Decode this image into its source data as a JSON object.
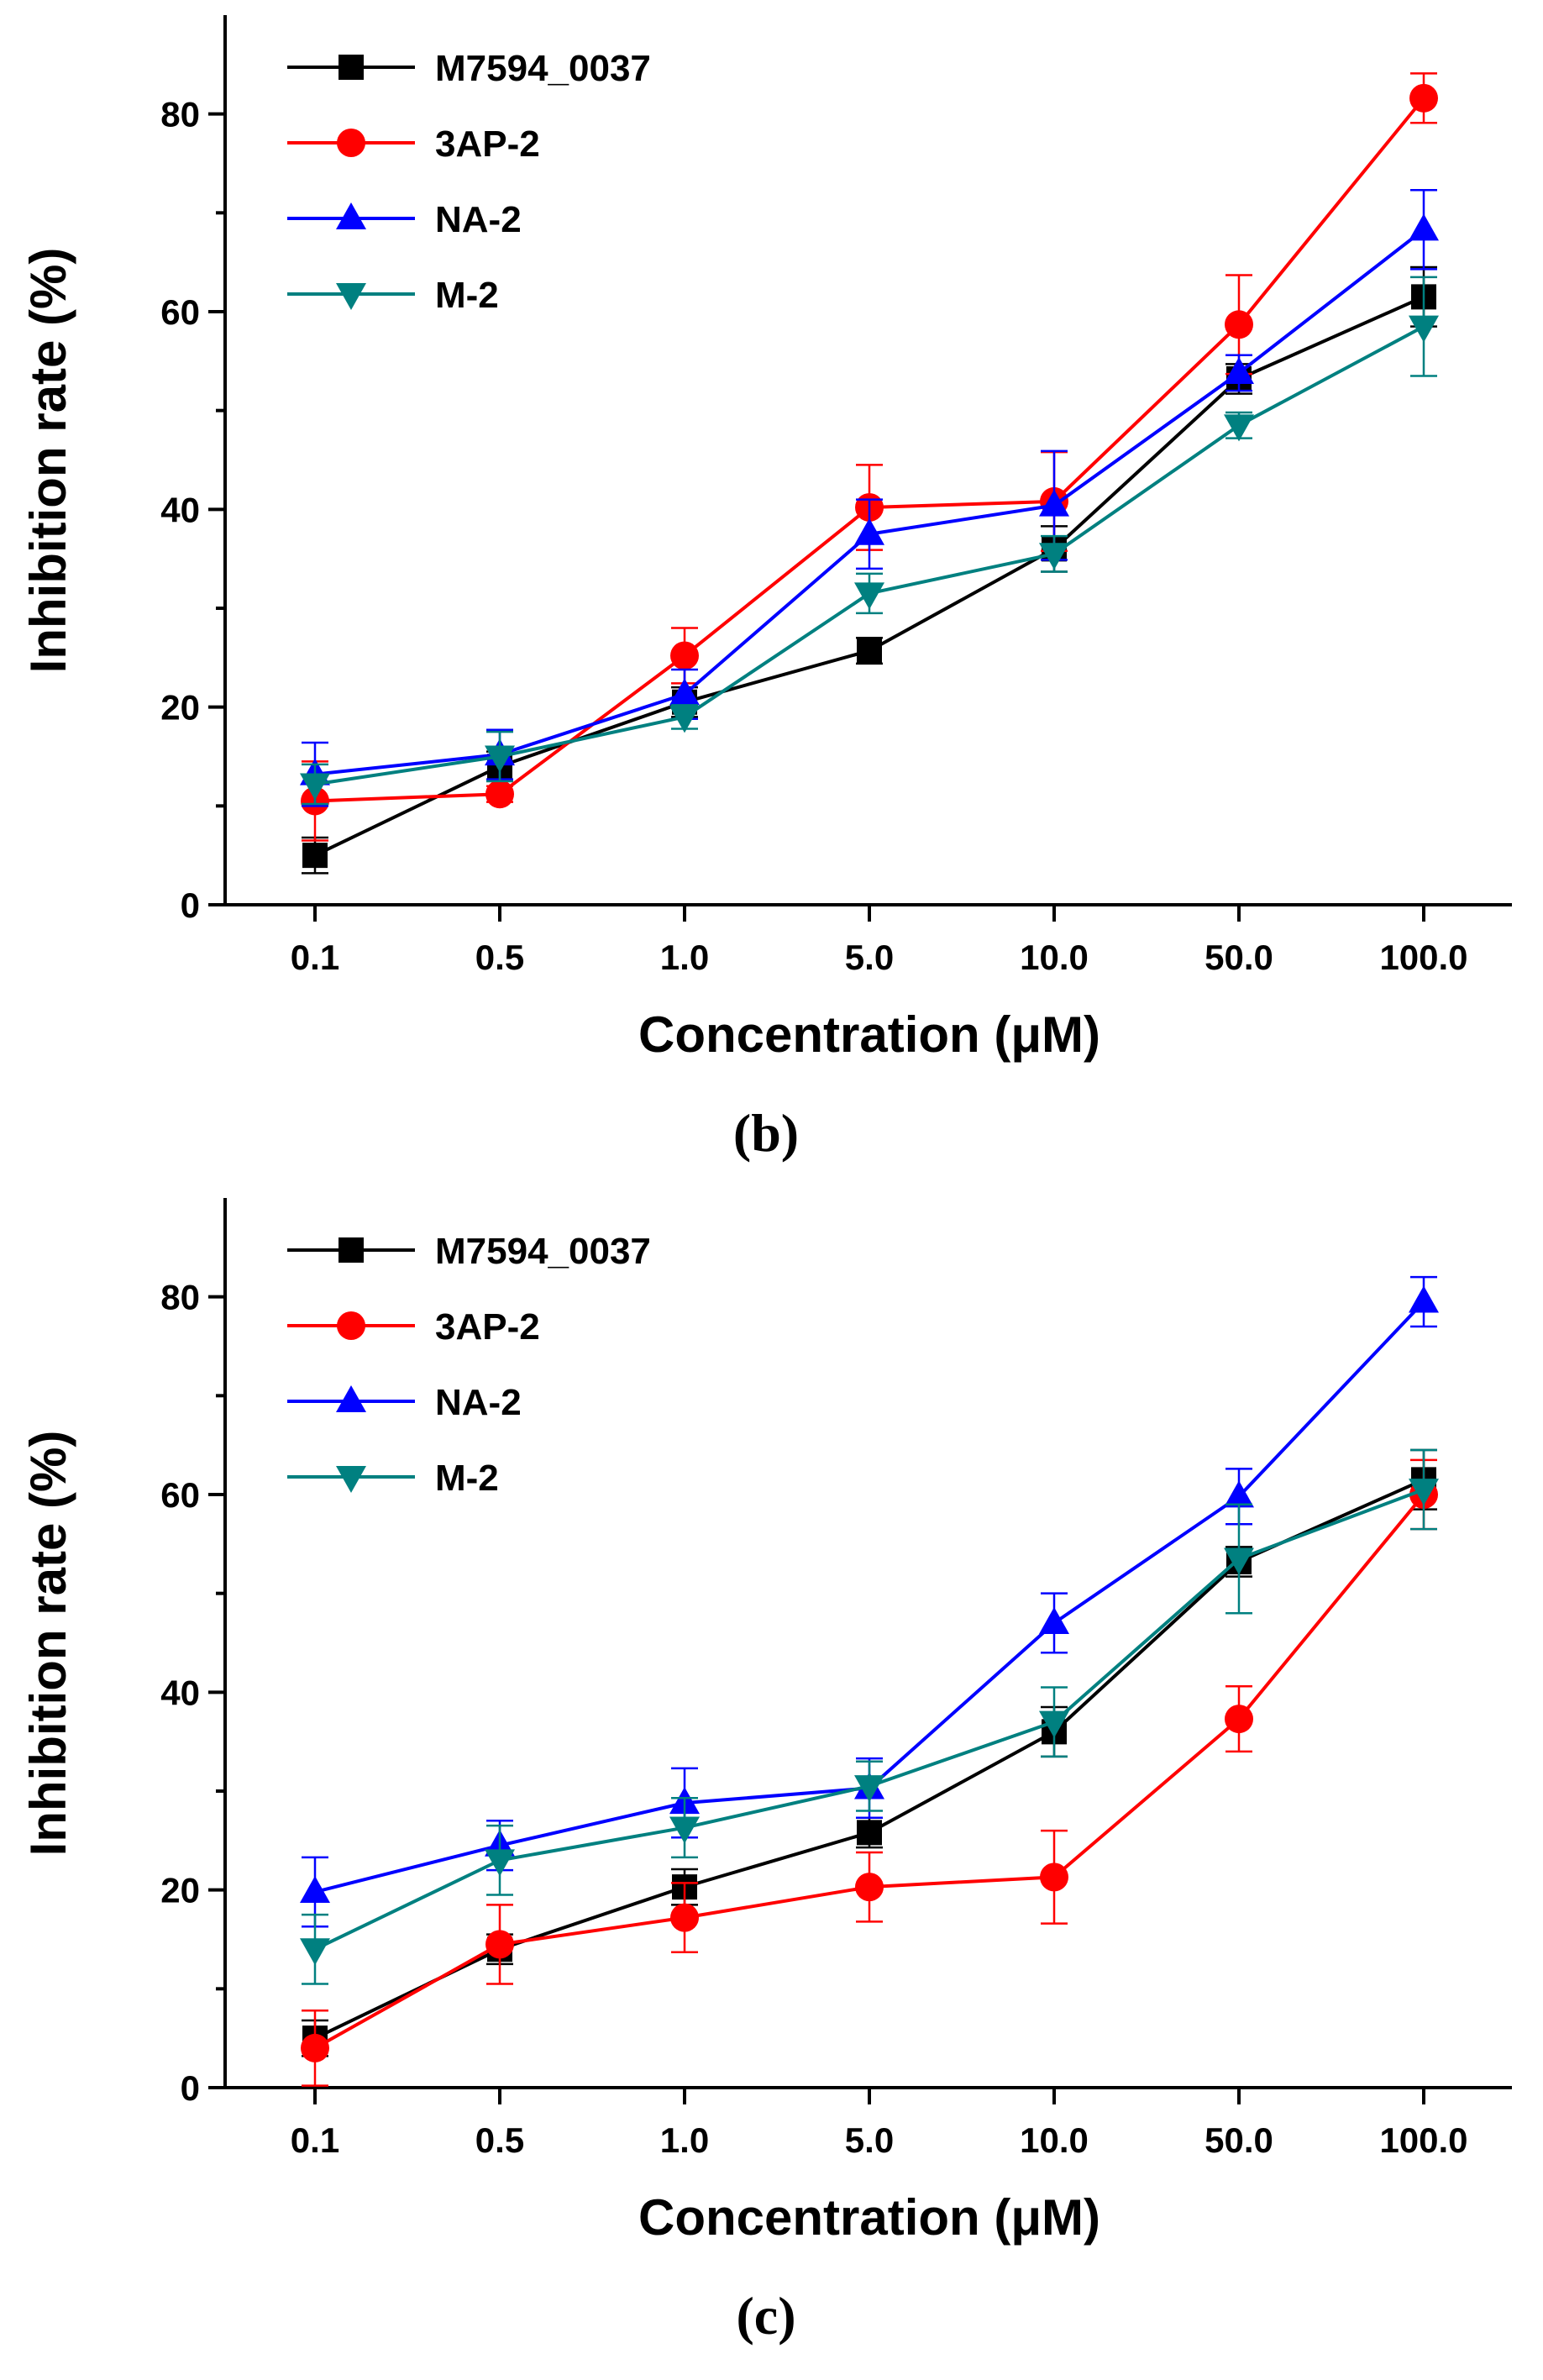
{
  "chart_data": [
    {
      "type": "line",
      "panel_label": "(b)",
      "xlabel": "Concentration (μM)",
      "ylabel": "Inhibition rate (%)",
      "categories": [
        "0.1",
        "0.5",
        "1.0",
        "5.0",
        "10.0",
        "50.0",
        "100.0"
      ],
      "ylim": [
        0,
        90
      ],
      "yticks": [
        0,
        20,
        40,
        60,
        80
      ],
      "y_tick_labels": [
        "0",
        "20",
        "40",
        "60",
        "80"
      ],
      "grid": false,
      "legend_position": "top-left",
      "series": [
        {
          "name": "M7594_0037",
          "color": "#000000",
          "marker": "square",
          "values": [
            5.0,
            14.0,
            20.5,
            25.7,
            36.0,
            53.2,
            61.5
          ],
          "errors": [
            1.8,
            1.5,
            1.5,
            1.3,
            2.3,
            1.5,
            3.0
          ]
        },
        {
          "name": "3AP-2",
          "color": "#ff0000",
          "marker": "circle",
          "values": [
            10.5,
            11.2,
            25.2,
            40.2,
            40.8,
            58.7,
            81.6
          ],
          "errors": [
            4.0,
            0.8,
            2.8,
            4.3,
            5.0,
            5.0,
            2.5
          ]
        },
        {
          "name": "NA-2",
          "color": "#0000ff",
          "marker": "triangle-up",
          "values": [
            13.2,
            15.2,
            21.3,
            37.5,
            40.4,
            53.8,
            68.3
          ],
          "errors": [
            3.2,
            2.5,
            2.5,
            3.5,
            5.5,
            1.8,
            4.0
          ]
        },
        {
          "name": "M-2",
          "color": "#008080",
          "marker": "triangle-down",
          "values": [
            12.2,
            15.0,
            19.0,
            31.5,
            35.5,
            48.5,
            58.5
          ],
          "errors": [
            2.0,
            2.5,
            1.2,
            2.0,
            1.8,
            1.3,
            5.0
          ]
        }
      ]
    },
    {
      "type": "line",
      "panel_label": "(c)",
      "xlabel": "Concentration (μM)",
      "ylabel": "Inhibition rate (%)",
      "categories": [
        "0.1",
        "0.5",
        "1.0",
        "5.0",
        "10.0",
        "50.0",
        "100.0"
      ],
      "ylim": [
        0,
        90
      ],
      "yticks": [
        0,
        20,
        40,
        60,
        80
      ],
      "y_tick_labels": [
        "0",
        "20",
        "40",
        "60",
        "80"
      ],
      "grid": false,
      "legend_position": "top-left",
      "series": [
        {
          "name": "M7594_0037",
          "color": "#000000",
          "marker": "square",
          "values": [
            5.0,
            14.0,
            20.3,
            25.8,
            36.0,
            53.2,
            61.5
          ],
          "errors": [
            1.8,
            1.5,
            1.8,
            1.5,
            2.5,
            1.5,
            3.0
          ]
        },
        {
          "name": "3AP-2",
          "color": "#ff0000",
          "marker": "circle",
          "values": [
            4.0,
            14.5,
            17.2,
            20.3,
            21.3,
            37.3,
            60.0
          ],
          "errors": [
            3.8,
            4.0,
            3.5,
            3.5,
            4.7,
            3.3,
            3.5
          ]
        },
        {
          "name": "NA-2",
          "color": "#0000ff",
          "marker": "triangle-up",
          "values": [
            19.8,
            24.5,
            28.8,
            30.3,
            47.0,
            59.8,
            79.5
          ],
          "errors": [
            3.5,
            2.5,
            3.5,
            3.0,
            3.0,
            2.8,
            2.5
          ]
        },
        {
          "name": "M-2",
          "color": "#008080",
          "marker": "triangle-down",
          "values": [
            14.0,
            23.0,
            26.3,
            30.5,
            37.0,
            53.5,
            60.5
          ],
          "errors": [
            3.5,
            3.5,
            3.0,
            2.5,
            3.5,
            5.5,
            4.0
          ]
        }
      ]
    }
  ]
}
